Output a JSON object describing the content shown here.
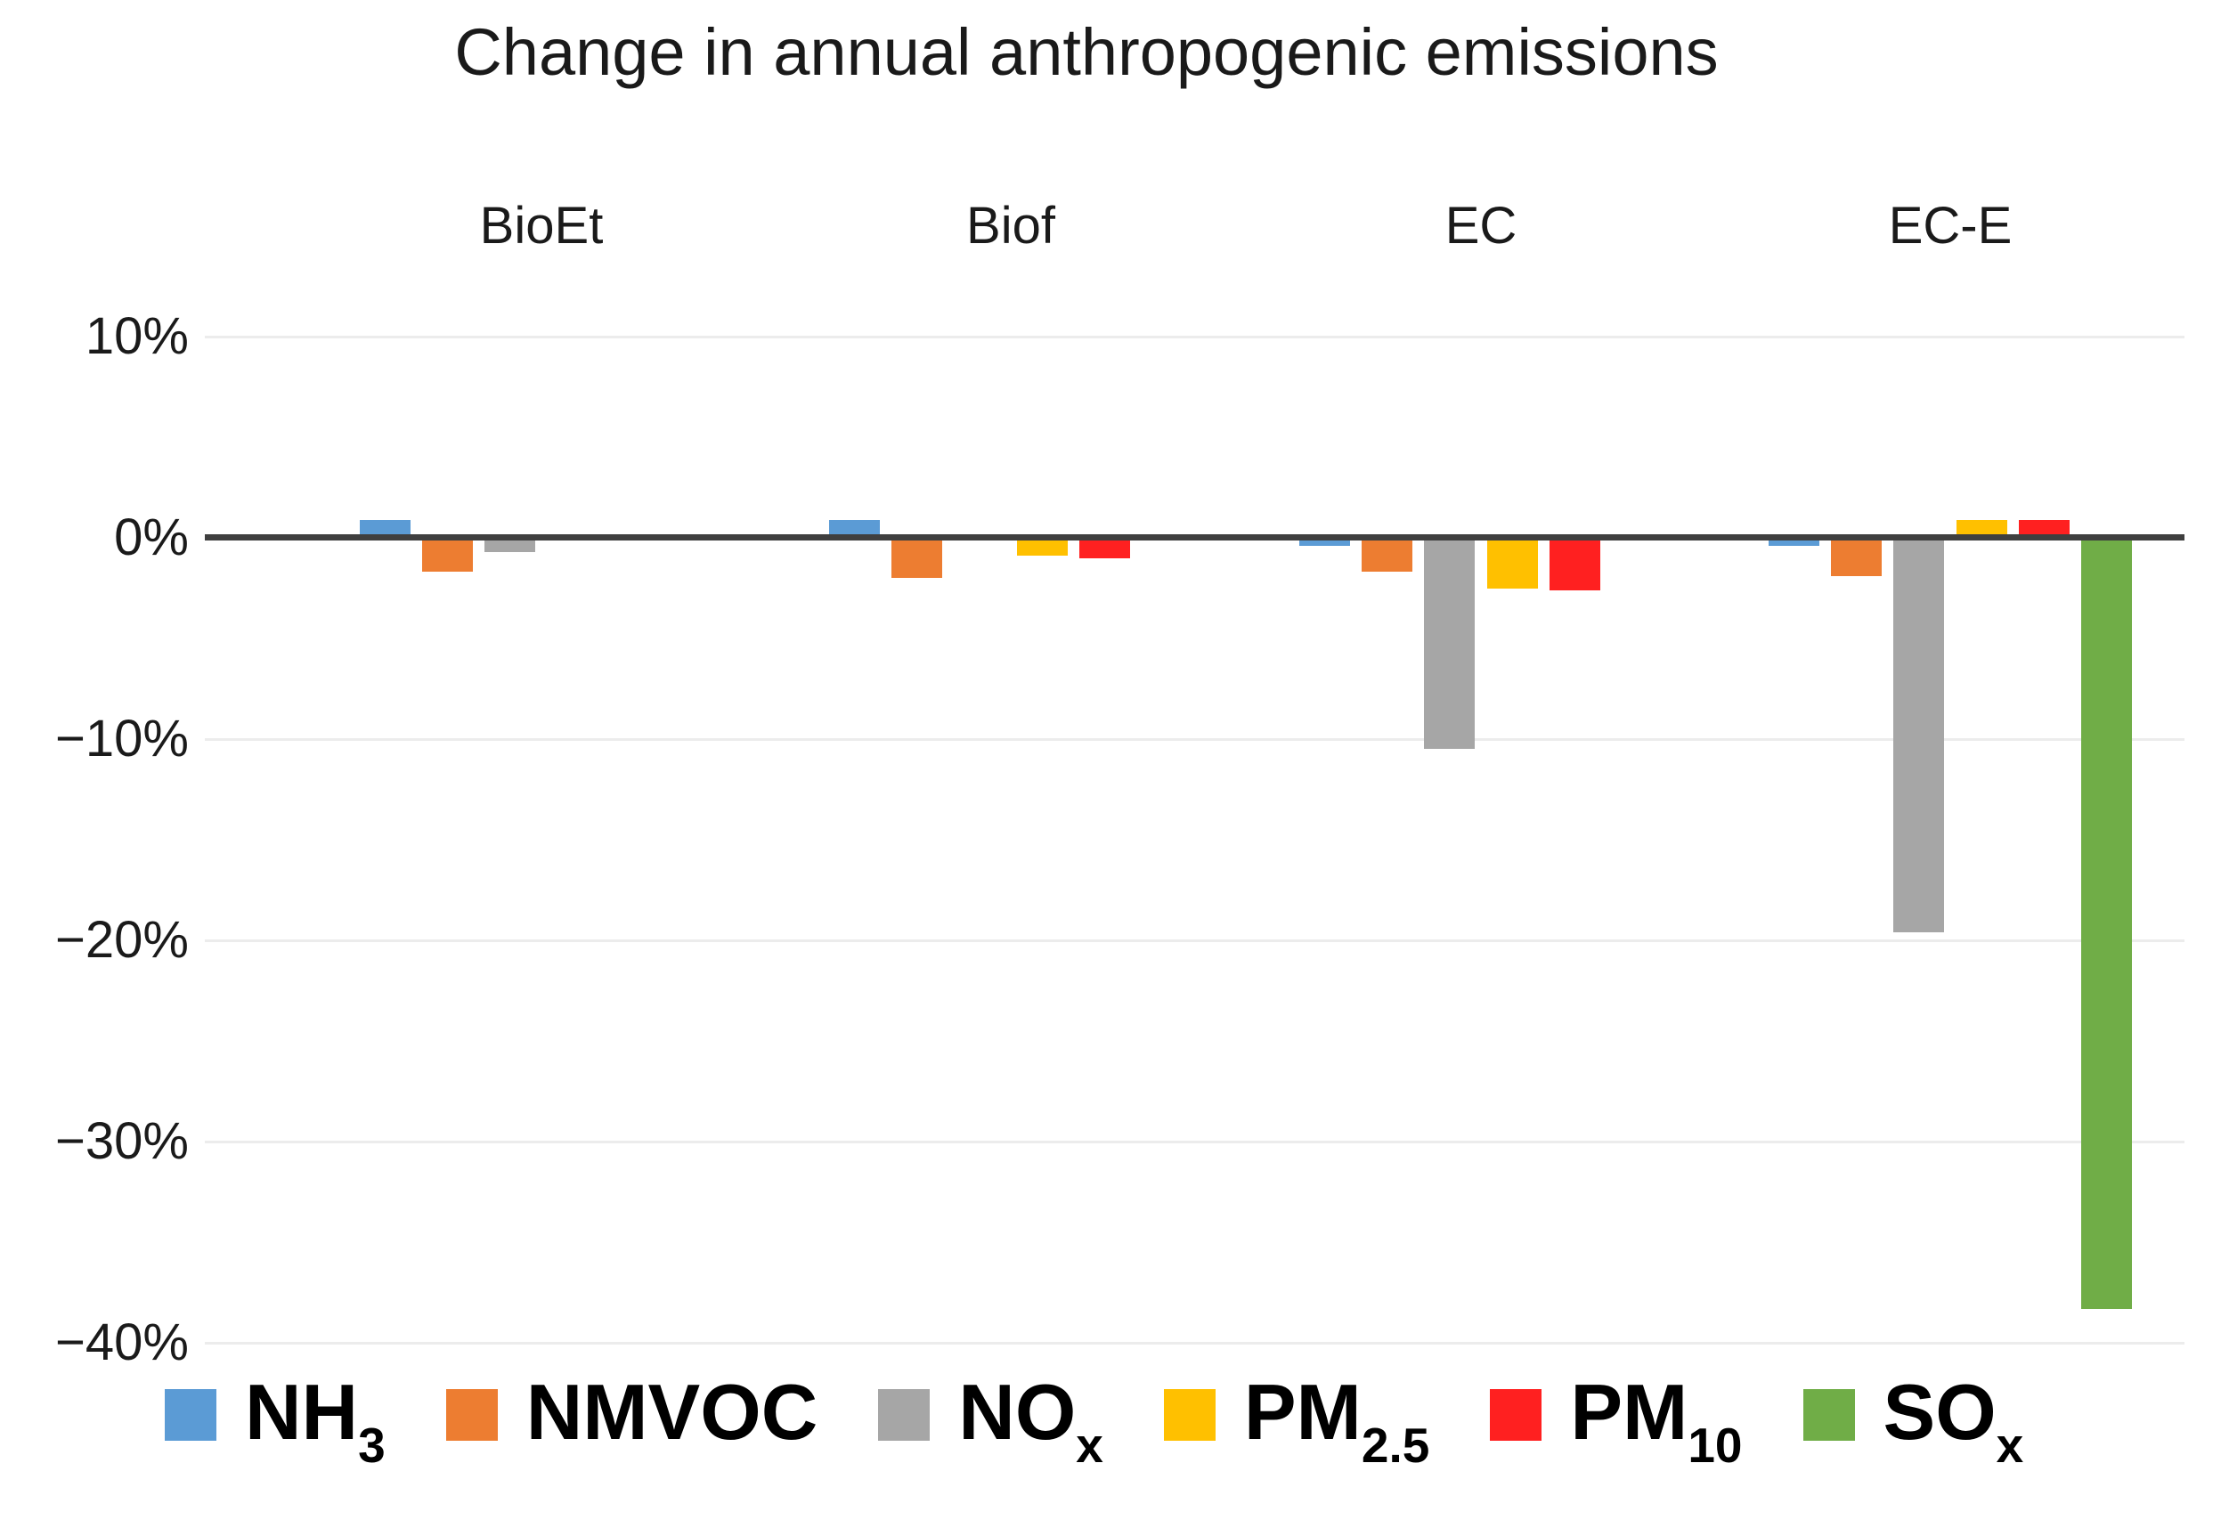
{
  "chart_data": {
    "type": "bar",
    "title": "Change in annual anthropogenic emissions",
    "categories": [
      "BioEt",
      "Biof",
      "EC",
      "EC-E"
    ],
    "series": [
      {
        "name": "NH3",
        "label_main": "NH",
        "label_sub": "3",
        "color": "#5b9bd5",
        "values": [
          0.9,
          0.9,
          -0.4,
          -0.4
        ]
      },
      {
        "name": "NMVOC",
        "label_main": "NMVOC",
        "label_sub": "",
        "color": "#ed7d31",
        "values": [
          -1.7,
          -2.0,
          -1.7,
          -1.9
        ]
      },
      {
        "name": "NOx",
        "label_main": "NO",
        "label_sub": "x",
        "color": "#a6a6a6",
        "values": [
          -0.7,
          0,
          -10.5,
          -19.6
        ]
      },
      {
        "name": "PM2.5",
        "label_main": "PM",
        "label_sub": "2.5",
        "color": "#ffc000",
        "values": [
          0,
          -0.9,
          -2.5,
          0.9
        ]
      },
      {
        "name": "PM10",
        "label_main": "PM",
        "label_sub": "10",
        "color": "#ff2020",
        "values": [
          0,
          -1.0,
          -2.6,
          0.9
        ]
      },
      {
        "name": "SOx",
        "label_main": "SO",
        "label_sub": "x",
        "color": "#70ad47",
        "values": [
          0,
          0,
          0,
          -38.3
        ]
      }
    ],
    "y_axis": {
      "unit": "%",
      "range": [
        -40,
        10
      ],
      "ticks": [
        {
          "value": 10,
          "label": "10%"
        },
        {
          "value": 0,
          "label": "0%"
        },
        {
          "value": -10,
          "label": "−10%"
        },
        {
          "value": -20,
          "label": "−20%"
        },
        {
          "value": -30,
          "label": "−30%"
        },
        {
          "value": -40,
          "label": "−40%"
        }
      ]
    },
    "grid": true,
    "legend_position": "bottom",
    "axis_line_color": "#3f3f3f",
    "gridline_color": "#ececec",
    "text_color": "#1a1a1a",
    "background_color": "#ffffff"
  }
}
